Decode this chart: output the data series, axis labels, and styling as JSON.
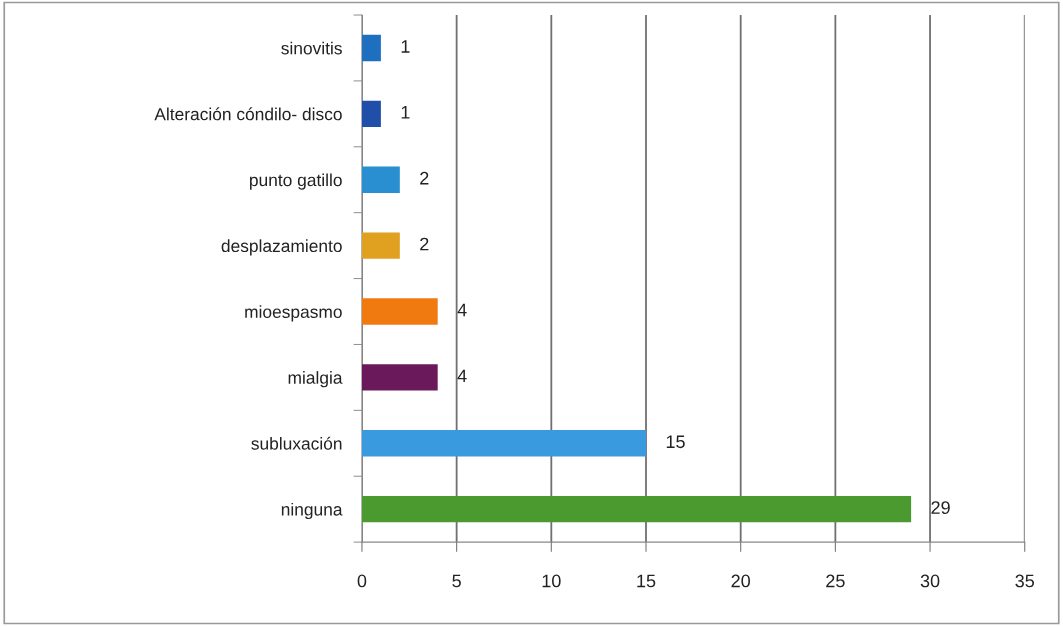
{
  "chart_data": {
    "type": "bar",
    "orientation": "horizontal",
    "categories": [
      "sinovitis",
      "Alteración cóndilo- disco",
      "punto gatillo",
      "desplazamiento",
      "mioespasmo",
      "mialgia",
      "subluxación",
      "ninguna"
    ],
    "values": [
      1,
      1,
      2,
      2,
      4,
      4,
      15,
      29
    ],
    "colors": [
      "#1f6fc0",
      "#1f4fa8",
      "#2a8fd0",
      "#e0a020",
      "#f07a10",
      "#6a1a5a",
      "#3a9ae0",
      "#4a9a30"
    ],
    "xlim": [
      0,
      35
    ],
    "xticks": [
      0,
      5,
      10,
      15,
      20,
      25,
      30,
      35
    ],
    "grid": "x",
    "data_labels": true
  }
}
